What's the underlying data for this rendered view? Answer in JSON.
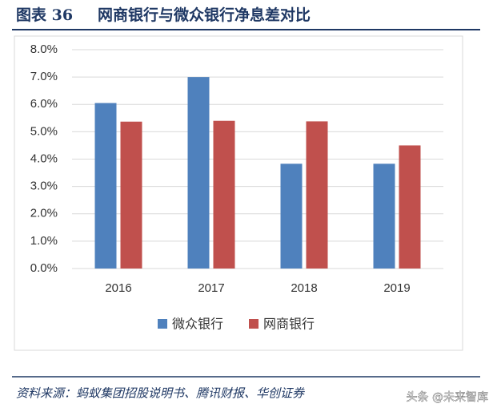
{
  "chart_data": {
    "type": "bar",
    "figure_label": "图表 36",
    "title": "网商银行与微众银行净息差对比",
    "categories": [
      "2016",
      "2017",
      "2018",
      "2019"
    ],
    "series": [
      {
        "name": "微众银行",
        "color": "#4f81bd",
        "values": [
          6.05,
          7.0,
          3.83,
          3.83
        ]
      },
      {
        "name": "网商银行",
        "color": "#c0504d",
        "values": [
          5.37,
          5.4,
          5.38,
          4.5
        ]
      }
    ],
    "ylim": [
      0,
      8
    ],
    "yticks": [
      {
        "value": 0,
        "label": "0.0%"
      },
      {
        "value": 1,
        "label": "1.0%"
      },
      {
        "value": 2,
        "label": "2.0%"
      },
      {
        "value": 3,
        "label": "3.0%"
      },
      {
        "value": 4,
        "label": "4.0%"
      },
      {
        "value": 5,
        "label": "5.0%"
      },
      {
        "value": 6,
        "label": "6.0%"
      },
      {
        "value": 7,
        "label": "7.0%"
      },
      {
        "value": 8,
        "label": "8.0%"
      }
    ],
    "grid": true,
    "legend": "bottom",
    "source": "资料来源：蚂蚁集团招股说明书、腾讯财报、华创证券",
    "watermark": "头条 @未来智库"
  }
}
